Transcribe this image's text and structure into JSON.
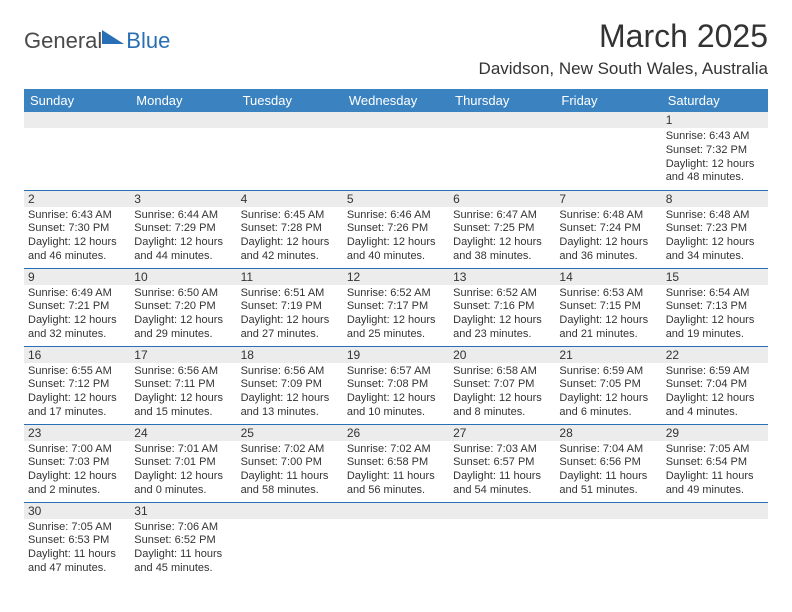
{
  "logo": {
    "text1": "General",
    "text2": "Blue"
  },
  "header": {
    "title": "March 2025",
    "location": "Davidson, New South Wales, Australia"
  },
  "styling": {
    "header_bg": "#3b83c0",
    "header_fg": "#ffffff",
    "daynum_bg": "#ececec",
    "cell_border": "#2a6fb5",
    "title_fontsize": 32,
    "location_fontsize": 17,
    "th_fontsize": 13,
    "cell_fontsize": 11,
    "page_bg": "#ffffff",
    "text_color": "#333333"
  },
  "weekdays": [
    "Sunday",
    "Monday",
    "Tuesday",
    "Wednesday",
    "Thursday",
    "Friday",
    "Saturday"
  ],
  "weeks": [
    [
      {
        "empty": true
      },
      {
        "empty": true
      },
      {
        "empty": true
      },
      {
        "empty": true
      },
      {
        "empty": true
      },
      {
        "empty": true
      },
      {
        "day": "1",
        "sunrise": "Sunrise: 6:43 AM",
        "sunset": "Sunset: 7:32 PM",
        "daylight1": "Daylight: 12 hours",
        "daylight2": "and 48 minutes."
      }
    ],
    [
      {
        "day": "2",
        "sunrise": "Sunrise: 6:43 AM",
        "sunset": "Sunset: 7:30 PM",
        "daylight1": "Daylight: 12 hours",
        "daylight2": "and 46 minutes."
      },
      {
        "day": "3",
        "sunrise": "Sunrise: 6:44 AM",
        "sunset": "Sunset: 7:29 PM",
        "daylight1": "Daylight: 12 hours",
        "daylight2": "and 44 minutes."
      },
      {
        "day": "4",
        "sunrise": "Sunrise: 6:45 AM",
        "sunset": "Sunset: 7:28 PM",
        "daylight1": "Daylight: 12 hours",
        "daylight2": "and 42 minutes."
      },
      {
        "day": "5",
        "sunrise": "Sunrise: 6:46 AM",
        "sunset": "Sunset: 7:26 PM",
        "daylight1": "Daylight: 12 hours",
        "daylight2": "and 40 minutes."
      },
      {
        "day": "6",
        "sunrise": "Sunrise: 6:47 AM",
        "sunset": "Sunset: 7:25 PM",
        "daylight1": "Daylight: 12 hours",
        "daylight2": "and 38 minutes."
      },
      {
        "day": "7",
        "sunrise": "Sunrise: 6:48 AM",
        "sunset": "Sunset: 7:24 PM",
        "daylight1": "Daylight: 12 hours",
        "daylight2": "and 36 minutes."
      },
      {
        "day": "8",
        "sunrise": "Sunrise: 6:48 AM",
        "sunset": "Sunset: 7:23 PM",
        "daylight1": "Daylight: 12 hours",
        "daylight2": "and 34 minutes."
      }
    ],
    [
      {
        "day": "9",
        "sunrise": "Sunrise: 6:49 AM",
        "sunset": "Sunset: 7:21 PM",
        "daylight1": "Daylight: 12 hours",
        "daylight2": "and 32 minutes."
      },
      {
        "day": "10",
        "sunrise": "Sunrise: 6:50 AM",
        "sunset": "Sunset: 7:20 PM",
        "daylight1": "Daylight: 12 hours",
        "daylight2": "and 29 minutes."
      },
      {
        "day": "11",
        "sunrise": "Sunrise: 6:51 AM",
        "sunset": "Sunset: 7:19 PM",
        "daylight1": "Daylight: 12 hours",
        "daylight2": "and 27 minutes."
      },
      {
        "day": "12",
        "sunrise": "Sunrise: 6:52 AM",
        "sunset": "Sunset: 7:17 PM",
        "daylight1": "Daylight: 12 hours",
        "daylight2": "and 25 minutes."
      },
      {
        "day": "13",
        "sunrise": "Sunrise: 6:52 AM",
        "sunset": "Sunset: 7:16 PM",
        "daylight1": "Daylight: 12 hours",
        "daylight2": "and 23 minutes."
      },
      {
        "day": "14",
        "sunrise": "Sunrise: 6:53 AM",
        "sunset": "Sunset: 7:15 PM",
        "daylight1": "Daylight: 12 hours",
        "daylight2": "and 21 minutes."
      },
      {
        "day": "15",
        "sunrise": "Sunrise: 6:54 AM",
        "sunset": "Sunset: 7:13 PM",
        "daylight1": "Daylight: 12 hours",
        "daylight2": "and 19 minutes."
      }
    ],
    [
      {
        "day": "16",
        "sunrise": "Sunrise: 6:55 AM",
        "sunset": "Sunset: 7:12 PM",
        "daylight1": "Daylight: 12 hours",
        "daylight2": "and 17 minutes."
      },
      {
        "day": "17",
        "sunrise": "Sunrise: 6:56 AM",
        "sunset": "Sunset: 7:11 PM",
        "daylight1": "Daylight: 12 hours",
        "daylight2": "and 15 minutes."
      },
      {
        "day": "18",
        "sunrise": "Sunrise: 6:56 AM",
        "sunset": "Sunset: 7:09 PM",
        "daylight1": "Daylight: 12 hours",
        "daylight2": "and 13 minutes."
      },
      {
        "day": "19",
        "sunrise": "Sunrise: 6:57 AM",
        "sunset": "Sunset: 7:08 PM",
        "daylight1": "Daylight: 12 hours",
        "daylight2": "and 10 minutes."
      },
      {
        "day": "20",
        "sunrise": "Sunrise: 6:58 AM",
        "sunset": "Sunset: 7:07 PM",
        "daylight1": "Daylight: 12 hours",
        "daylight2": "and 8 minutes."
      },
      {
        "day": "21",
        "sunrise": "Sunrise: 6:59 AM",
        "sunset": "Sunset: 7:05 PM",
        "daylight1": "Daylight: 12 hours",
        "daylight2": "and 6 minutes."
      },
      {
        "day": "22",
        "sunrise": "Sunrise: 6:59 AM",
        "sunset": "Sunset: 7:04 PM",
        "daylight1": "Daylight: 12 hours",
        "daylight2": "and 4 minutes."
      }
    ],
    [
      {
        "day": "23",
        "sunrise": "Sunrise: 7:00 AM",
        "sunset": "Sunset: 7:03 PM",
        "daylight1": "Daylight: 12 hours",
        "daylight2": "and 2 minutes."
      },
      {
        "day": "24",
        "sunrise": "Sunrise: 7:01 AM",
        "sunset": "Sunset: 7:01 PM",
        "daylight1": "Daylight: 12 hours",
        "daylight2": "and 0 minutes."
      },
      {
        "day": "25",
        "sunrise": "Sunrise: 7:02 AM",
        "sunset": "Sunset: 7:00 PM",
        "daylight1": "Daylight: 11 hours",
        "daylight2": "and 58 minutes."
      },
      {
        "day": "26",
        "sunrise": "Sunrise: 7:02 AM",
        "sunset": "Sunset: 6:58 PM",
        "daylight1": "Daylight: 11 hours",
        "daylight2": "and 56 minutes."
      },
      {
        "day": "27",
        "sunrise": "Sunrise: 7:03 AM",
        "sunset": "Sunset: 6:57 PM",
        "daylight1": "Daylight: 11 hours",
        "daylight2": "and 54 minutes."
      },
      {
        "day": "28",
        "sunrise": "Sunrise: 7:04 AM",
        "sunset": "Sunset: 6:56 PM",
        "daylight1": "Daylight: 11 hours",
        "daylight2": "and 51 minutes."
      },
      {
        "day": "29",
        "sunrise": "Sunrise: 7:05 AM",
        "sunset": "Sunset: 6:54 PM",
        "daylight1": "Daylight: 11 hours",
        "daylight2": "and 49 minutes."
      }
    ],
    [
      {
        "day": "30",
        "sunrise": "Sunrise: 7:05 AM",
        "sunset": "Sunset: 6:53 PM",
        "daylight1": "Daylight: 11 hours",
        "daylight2": "and 47 minutes."
      },
      {
        "day": "31",
        "sunrise": "Sunrise: 7:06 AM",
        "sunset": "Sunset: 6:52 PM",
        "daylight1": "Daylight: 11 hours",
        "daylight2": "and 45 minutes."
      },
      {
        "empty": true
      },
      {
        "empty": true
      },
      {
        "empty": true
      },
      {
        "empty": true
      },
      {
        "empty": true
      }
    ]
  ]
}
